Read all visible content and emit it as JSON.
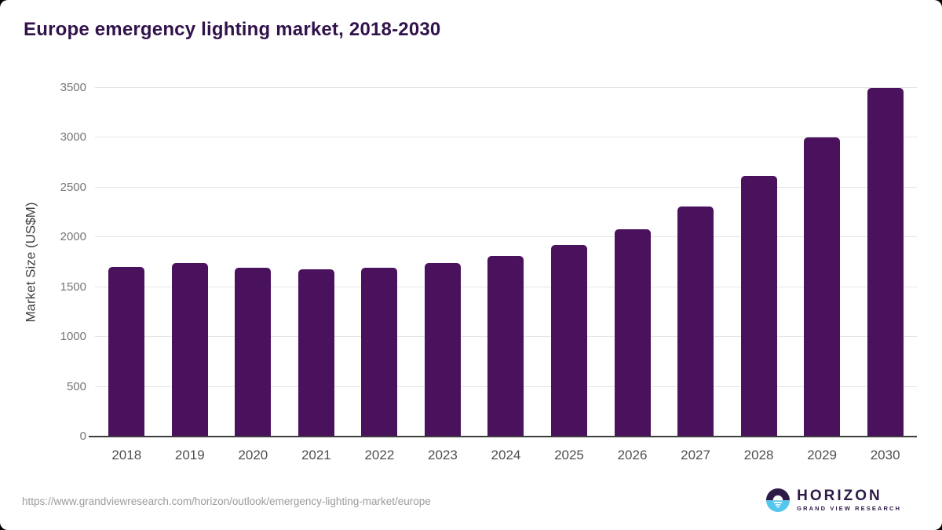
{
  "title": "Europe emergency lighting market, 2018-2030",
  "footer": {
    "source_url": "https://www.grandviewresearch.com/horizon/outlook/emergency-lighting-market/europe",
    "logo_name": "HORIZON",
    "logo_subtitle": "GRAND VIEW RESEARCH"
  },
  "colors": {
    "bar": "#4a115c",
    "title": "#31124b",
    "gridline": "#e4e4e4",
    "axis_line": "#3d3d3d",
    "logo_purple": "#2e1a47",
    "logo_blue": "#55c6ee"
  },
  "chart_data": {
    "type": "bar",
    "title": "Europe emergency lighting market, 2018-2030",
    "categories": [
      "2018",
      "2019",
      "2020",
      "2021",
      "2022",
      "2023",
      "2024",
      "2025",
      "2026",
      "2027",
      "2028",
      "2029",
      "2030"
    ],
    "values": [
      1700,
      1740,
      1695,
      1680,
      1695,
      1740,
      1810,
      1920,
      2080,
      2310,
      2620,
      3005,
      3500
    ],
    "xlabel": "",
    "ylabel": "Market Size (US$M)",
    "ylim": [
      0,
      3500
    ],
    "yticks": [
      0,
      500,
      1000,
      1500,
      2000,
      2500,
      3000,
      3500
    ],
    "grid": "horizontal",
    "legend": "none",
    "bar_color": "#4a115c"
  }
}
